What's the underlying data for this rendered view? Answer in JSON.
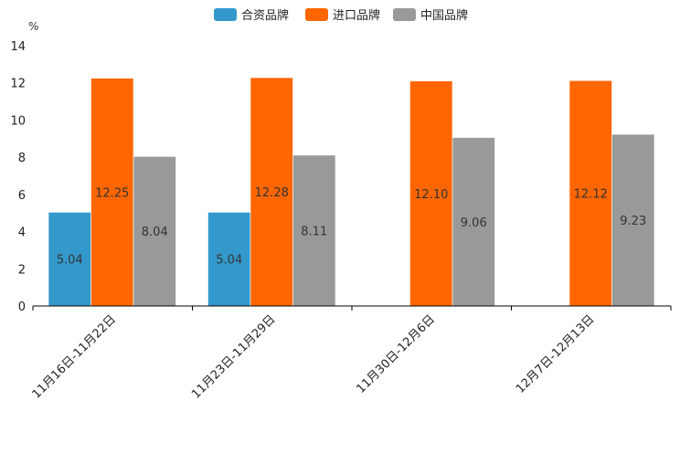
{
  "chart_data": {
    "type": "bar",
    "title": "",
    "unit_label": "%",
    "xlabel": "",
    "ylabel": "",
    "ylim": [
      0,
      14
    ],
    "yticks": [
      0,
      2,
      4,
      6,
      8,
      10,
      12,
      14
    ],
    "grid": false,
    "legend_position": "top-center",
    "categories": [
      "11月16日-11月22日",
      "11月23日-11月29日",
      "11月30日-12月6日",
      "12月7日-12月13日"
    ],
    "series": [
      {
        "name": "合资品牌",
        "color": "#3399cc",
        "values": [
          5.04,
          5.04,
          null,
          null
        ]
      },
      {
        "name": "进口品牌",
        "color": "#ff6600",
        "values": [
          12.25,
          12.28,
          12.1,
          12.12
        ]
      },
      {
        "name": "中国品牌",
        "color": "#999999",
        "values": [
          8.04,
          8.11,
          9.06,
          9.23
        ]
      }
    ]
  }
}
